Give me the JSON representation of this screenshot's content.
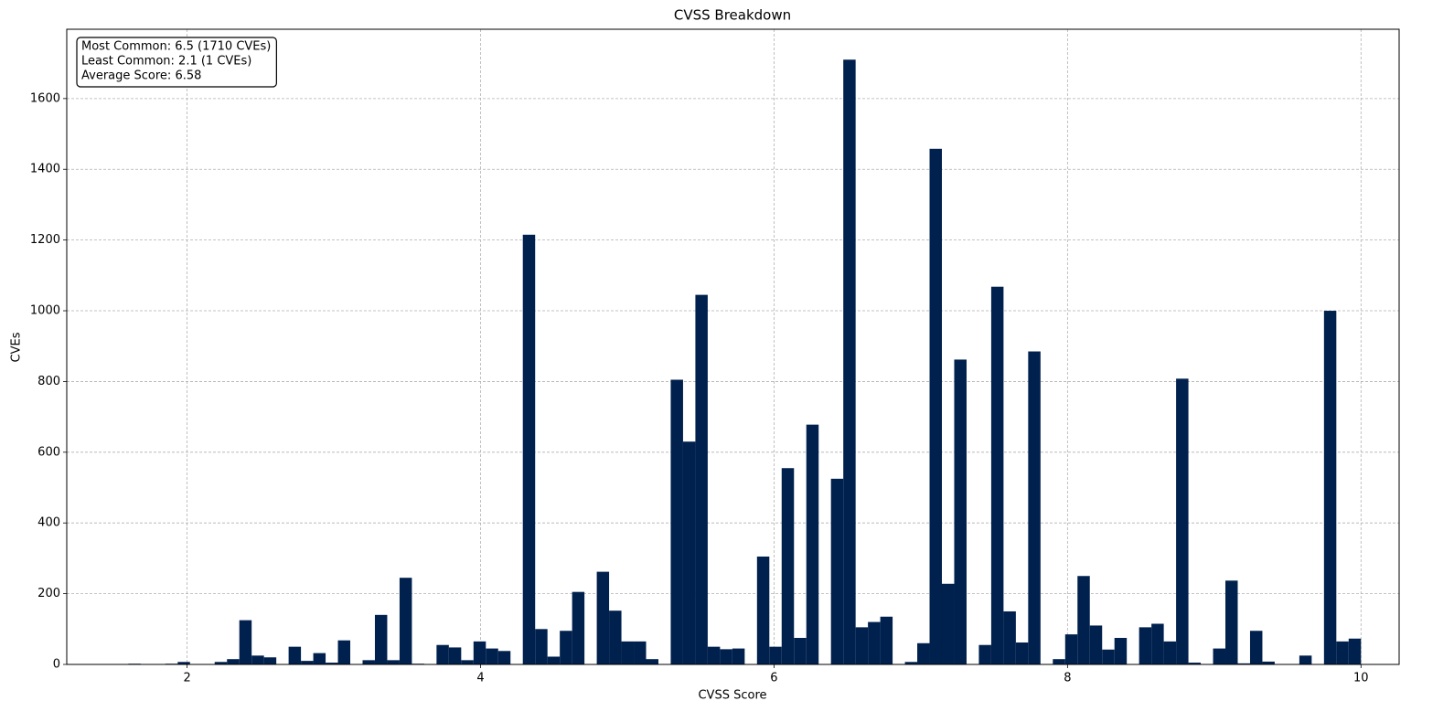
{
  "chart_data": {
    "type": "histogram",
    "title": "CVSS Breakdown",
    "x_label": "CVSS Score",
    "y_label": "CVEs",
    "annotation": [
      "Most Common: 6.5 (1710 CVEs)",
      "Least Common: 2.1 (1 CVEs)",
      "Average Score: 6.58"
    ],
    "color": "#00204d",
    "grid": true,
    "bins": [
      1.6,
      1.684,
      1.768,
      1.852,
      1.936,
      2.02,
      2.104,
      2.188,
      2.272,
      2.356,
      2.44,
      2.524,
      2.608,
      2.692,
      2.776,
      2.86,
      2.944,
      3.028,
      3.112,
      3.196,
      3.28,
      3.364,
      3.448,
      3.532,
      3.616,
      3.7,
      3.784,
      3.868,
      3.952,
      4.036,
      4.12,
      4.204,
      4.288,
      4.372,
      4.456,
      4.54,
      4.624,
      4.708,
      4.792,
      4.876,
      4.96,
      5.044,
      5.128,
      5.212,
      5.296,
      5.38,
      5.464,
      5.548,
      5.632,
      5.716,
      5.8,
      5.884,
      5.968,
      6.052,
      6.136,
      6.22,
      6.304,
      6.388,
      6.472,
      6.556,
      6.64,
      6.724,
      6.808,
      6.892,
      6.976,
      7.06,
      7.144,
      7.228,
      7.312,
      7.396,
      7.48,
      7.564,
      7.648,
      7.732,
      7.816,
      7.9,
      7.984,
      8.068,
      8.152,
      8.236,
      8.32,
      8.404,
      8.488,
      8.572,
      8.656,
      8.74,
      8.824,
      8.908,
      8.992,
      9.076,
      9.16,
      9.244,
      9.328,
      9.412,
      9.496,
      9.58,
      9.664,
      9.748,
      9.832,
      9.916,
      10.0
    ],
    "values": [
      2,
      0,
      1,
      2,
      7,
      1,
      0,
      7,
      15,
      125,
      25,
      20,
      0,
      50,
      10,
      32,
      5,
      68,
      0,
      12,
      140,
      12,
      245,
      2,
      0,
      55,
      48,
      12,
      65,
      45,
      38,
      0,
      1215,
      100,
      22,
      95,
      205,
      0,
      262,
      152,
      65,
      65,
      15,
      0,
      805,
      630,
      1045,
      50,
      43,
      45,
      0,
      305,
      50,
      555,
      75,
      678,
      0,
      525,
      1710,
      105,
      120,
      135,
      0,
      7,
      60,
      1458,
      228,
      862,
      0,
      55,
      1068,
      150,
      62,
      885,
      0,
      15,
      85,
      250,
      110,
      42,
      75,
      0,
      105,
      115,
      65,
      808,
      5,
      0,
      45,
      237,
      3,
      95,
      8,
      0,
      0,
      25,
      0,
      1000,
      65,
      73
    ],
    "xlim": [
      1.18,
      10.26
    ],
    "xticks": [
      2,
      4,
      6,
      8,
      10
    ],
    "ylim": [
      0,
      1796
    ],
    "yticks": [
      0,
      200,
      400,
      600,
      800,
      1000,
      1200,
      1400,
      1600
    ]
  }
}
